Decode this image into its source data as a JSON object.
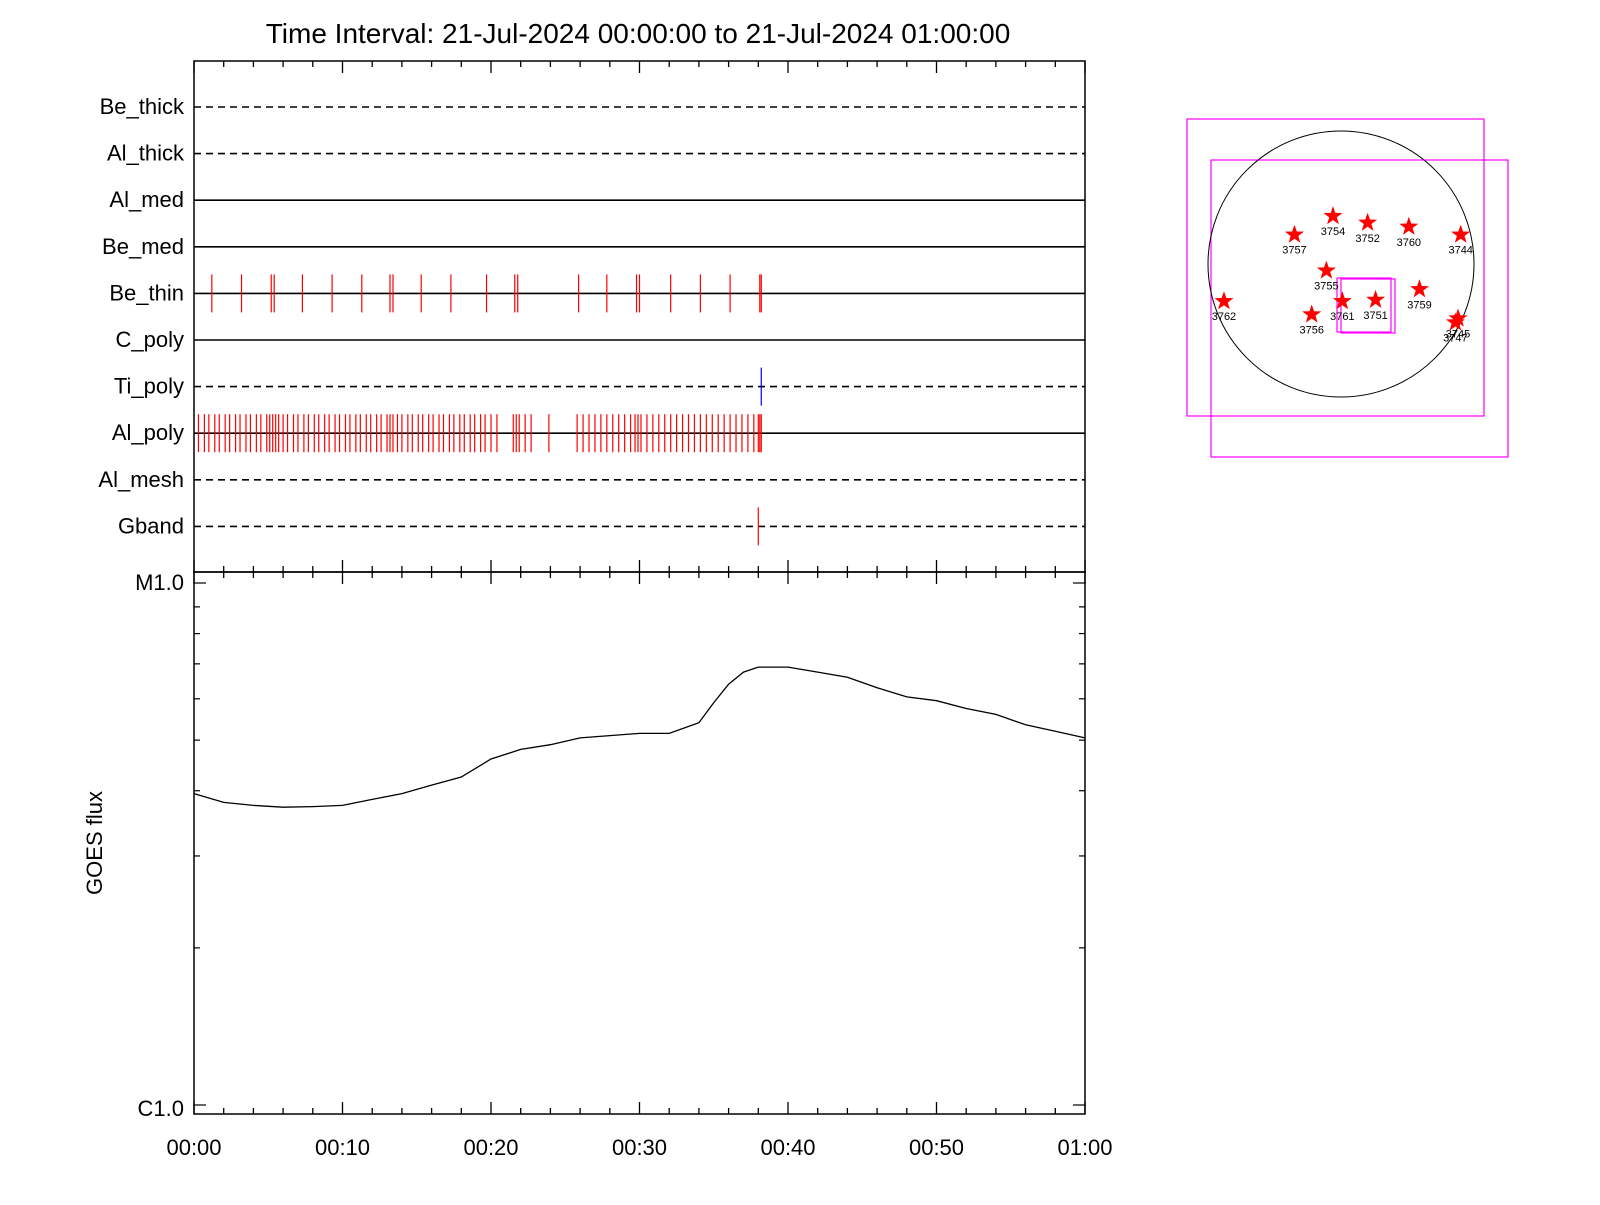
{
  "title": "Time Interval: 21-Jul-2024 00:00:00 to 21-Jul-2024 01:00:00",
  "colors": {
    "axes": "#000000",
    "red_event": "#ff0000",
    "blue_event": "#0000ff",
    "fov_box": "#ff00ff",
    "sun_disk": "#000000",
    "star": "#ff0000"
  },
  "chart_data": [
    {
      "type": "event_timeline",
      "x_range_minutes": [
        0,
        60
      ],
      "x_tick_labels": [
        "00:00",
        "00:10",
        "00:20",
        "00:30",
        "00:40",
        "00:50",
        "01:00"
      ],
      "channels": [
        {
          "name": "Be_thick",
          "line": "dashed",
          "events": [],
          "event_color": "red"
        },
        {
          "name": "Al_thick",
          "line": "dashed",
          "events": [],
          "event_color": "red"
        },
        {
          "name": "Al_med",
          "line": "solid",
          "events": [],
          "event_color": "red"
        },
        {
          "name": "Be_med",
          "line": "solid",
          "events": [],
          "event_color": "red"
        },
        {
          "name": "Be_thin",
          "line": "solid",
          "event_color": "red",
          "events": [
            1.2,
            3.2,
            5.2,
            5.4,
            7.3,
            9.3,
            11.3,
            13.2,
            13.4,
            15.3,
            17.3,
            19.7,
            21.6,
            21.8,
            25.9,
            27.8,
            29.8,
            30.0,
            32.1,
            34.1,
            36.1,
            38.1,
            38.2
          ]
        },
        {
          "name": "C_poly",
          "line": "solid",
          "events": [],
          "event_color": "red"
        },
        {
          "name": "Ti_poly",
          "line": "dashed",
          "events": [
            38.2
          ],
          "event_color": "blue"
        },
        {
          "name": "Al_poly",
          "line": "solid",
          "event_color": "red",
          "events": [
            0.3,
            0.7,
            1.0,
            1.4,
            1.7,
            2.1,
            2.4,
            2.8,
            3.1,
            3.5,
            3.8,
            4.2,
            4.5,
            4.9,
            5.1,
            5.3,
            5.5,
            5.7,
            6.0,
            6.3,
            6.7,
            7.0,
            7.4,
            7.7,
            8.1,
            8.4,
            8.8,
            9.1,
            9.5,
            9.8,
            10.2,
            10.5,
            10.9,
            11.2,
            11.6,
            11.9,
            12.3,
            12.6,
            13.0,
            13.2,
            13.4,
            13.7,
            14.0,
            14.4,
            14.7,
            15.1,
            15.4,
            15.8,
            16.1,
            16.5,
            16.8,
            17.2,
            17.5,
            17.9,
            18.2,
            18.6,
            18.9,
            19.3,
            19.6,
            20.0,
            20.4,
            21.5,
            21.7,
            21.9,
            22.3,
            22.7,
            23.9,
            25.8,
            26.2,
            26.6,
            27.0,
            27.4,
            27.8,
            28.2,
            28.6,
            29.0,
            29.4,
            29.7,
            29.9,
            30.1,
            30.5,
            30.9,
            31.3,
            31.7,
            32.1,
            32.5,
            32.9,
            33.3,
            33.7,
            34.1,
            34.5,
            34.9,
            35.3,
            35.7,
            36.1,
            36.5,
            36.9,
            37.3,
            37.7,
            38.0,
            38.1,
            38.2
          ]
        },
        {
          "name": "Al_mesh",
          "line": "dashed",
          "events": [],
          "event_color": "red"
        },
        {
          "name": "Gband",
          "line": "dashed",
          "events": [
            38.0
          ],
          "event_color": "red"
        }
      ]
    },
    {
      "type": "line",
      "ylabel": "GOES flux",
      "y_scale": "log",
      "y_range": [
        1e-06,
        1e-05
      ],
      "y_tick_labels": [
        "C1.0",
        "M1.0"
      ],
      "x_range_minutes": [
        0,
        60
      ],
      "x_tick_labels": [
        "00:00",
        "00:10",
        "00:20",
        "00:30",
        "00:40",
        "00:50",
        "01:00"
      ],
      "grid": false,
      "series": [
        {
          "x_minutes": [
            0,
            2,
            4,
            6,
            8,
            10,
            12,
            14,
            16,
            18,
            20,
            22,
            24,
            26,
            28,
            30,
            32,
            34,
            35,
            36,
            37,
            38,
            40,
            42,
            44,
            46,
            48,
            50,
            52,
            54,
            56,
            58,
            60
          ],
          "y": [
            3.95e-06,
            3.8e-06,
            3.75e-06,
            3.72e-06,
            3.73e-06,
            3.75e-06,
            3.85e-06,
            3.95e-06,
            4.1e-06,
            4.25e-06,
            4.6e-06,
            4.8e-06,
            4.9e-06,
            5.05e-06,
            5.1e-06,
            5.15e-06,
            5.15e-06,
            5.4e-06,
            5.9e-06,
            6.4e-06,
            6.75e-06,
            6.9e-06,
            6.9e-06,
            6.75e-06,
            6.6e-06,
            6.3e-06,
            6.05e-06,
            5.95e-06,
            5.75e-06,
            5.6e-06,
            5.35e-06,
            5.2e-06,
            5.05e-06
          ]
        }
      ]
    },
    {
      "type": "scatter",
      "subtype": "solar_disk_map",
      "markers": [
        {
          "label": "3757",
          "x": -0.35,
          "y": 0.22
        },
        {
          "label": "3754",
          "x": -0.06,
          "y": 0.36
        },
        {
          "label": "3752",
          "x": 0.2,
          "y": 0.31
        },
        {
          "label": "3760",
          "x": 0.51,
          "y": 0.28
        },
        {
          "label": "3744",
          "x": 0.9,
          "y": 0.22
        },
        {
          "label": "3755",
          "x": -0.11,
          "y": -0.05
        },
        {
          "label": "3761",
          "x": 0.01,
          "y": -0.28
        },
        {
          "label": "3751",
          "x": 0.26,
          "y": -0.27
        },
        {
          "label": "3759",
          "x": 0.59,
          "y": -0.19
        },
        {
          "label": "3762",
          "x": -0.88,
          "y": -0.28
        },
        {
          "label": "3756",
          "x": -0.22,
          "y": -0.38
        },
        {
          "label": "3745",
          "x": 0.88,
          "y": -0.41
        },
        {
          "label": "3747",
          "x": 0.86,
          "y": -0.44
        }
      ]
    }
  ]
}
